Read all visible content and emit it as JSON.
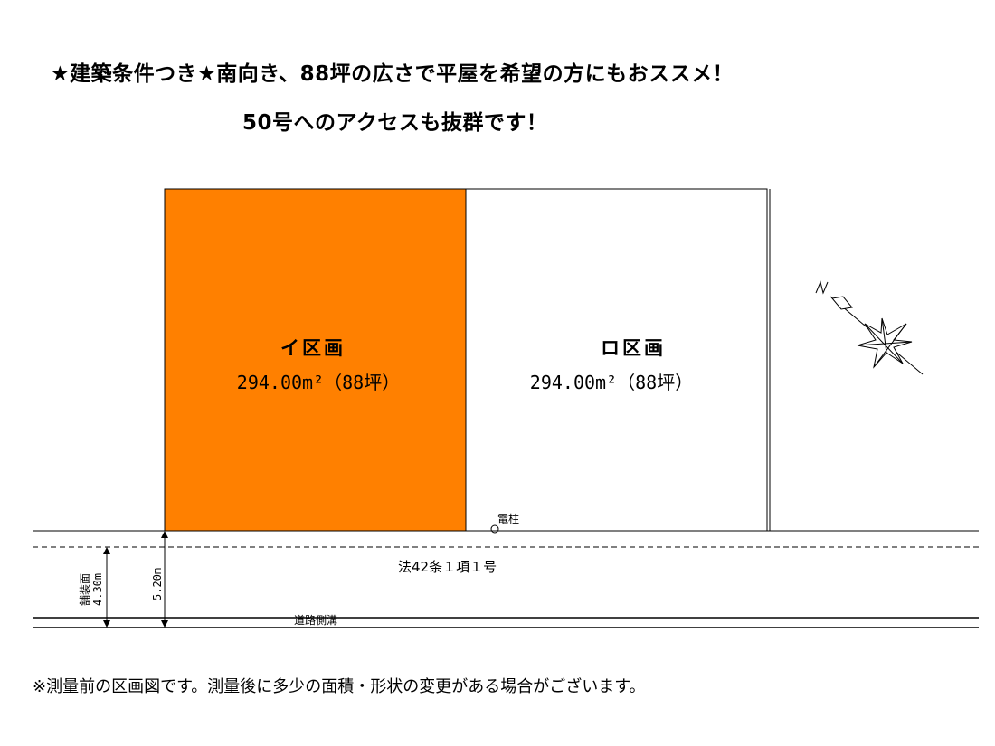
{
  "headline": {
    "line1": "★建築条件つき★南向き、88坪の広さで平屋を希望の方にもおススメ！",
    "line2": "50号へのアクセスも抜群です！"
  },
  "lots": [
    {
      "name": "イ区画",
      "area": "294.00m²（88坪）",
      "color": "#ff8000"
    },
    {
      "name": "ロ区画",
      "area": "294.00m²（88坪）",
      "color": "#ffffff"
    }
  ],
  "labels": {
    "utility_pole": "電柱",
    "road_type": "法42条１項１号",
    "side_ditch": "道路側溝",
    "paved_width_label": "舗装面",
    "paved_width": "4.30m",
    "road_width": "5.20m"
  },
  "footer_note": "※測量前の区画図です。測量後に多少の面積・形状の変更がある場合がございます。"
}
